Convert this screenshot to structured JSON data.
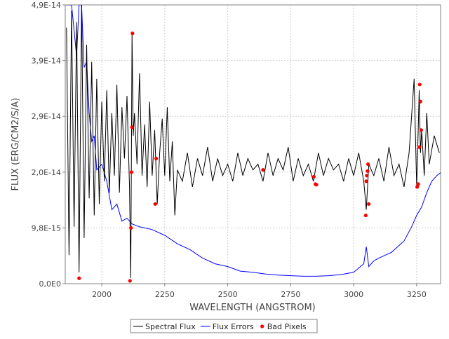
{
  "chart_data": {
    "type": "line",
    "xlabel": "WAVELENGTH (ANGSTROM)",
    "ylabel": "FLUX (ERG/CM2/S/A)",
    "xlim": [
      1855,
      3345
    ],
    "ylim": [
      0,
      4.9e-14
    ],
    "x_ticks": [
      2000,
      2250,
      2500,
      2750,
      3000,
      3250
    ],
    "y_ticks": [
      {
        "value": 0,
        "label": "0,0E0"
      },
      {
        "value": 9.8e-15,
        "label": "9,8E-15"
      },
      {
        "value": 1.96e-14,
        "label": "2,0E-14"
      },
      {
        "value": 2.94e-14,
        "label": "2,9E-14"
      },
      {
        "value": 3.92e-14,
        "label": "3,9E-14"
      },
      {
        "value": 4.9e-14,
        "label": "4,9E-14"
      }
    ],
    "grid": true,
    "legend_position": "bottom",
    "series": [
      {
        "name": "Spectral Flux",
        "color": "#000000",
        "x": [
          1860,
          1870,
          1880,
          1890,
          1900,
          1910,
          1920,
          1930,
          1940,
          1950,
          1960,
          1970,
          1980,
          1990,
          2000,
          2010,
          2020,
          2030,
          2040,
          2050,
          2060,
          2070,
          2080,
          2090,
          2100,
          2110,
          2115,
          2120,
          2125,
          2130,
          2140,
          2150,
          2160,
          2170,
          2180,
          2190,
          2200,
          2210,
          2220,
          2230,
          2240,
          2250,
          2260,
          2270,
          2280,
          2290,
          2300,
          2320,
          2340,
          2360,
          2380,
          2400,
          2420,
          2440,
          2460,
          2480,
          2500,
          2520,
          2540,
          2560,
          2580,
          2600,
          2620,
          2640,
          2660,
          2680,
          2700,
          2720,
          2740,
          2760,
          2780,
          2800,
          2820,
          2840,
          2860,
          2880,
          2900,
          2920,
          2940,
          2960,
          2980,
          3000,
          3020,
          3040,
          3050,
          3060,
          3080,
          3100,
          3120,
          3140,
          3160,
          3180,
          3200,
          3220,
          3240,
          3250,
          3255,
          3260,
          3265,
          3270,
          3280,
          3290,
          3300,
          3320,
          3340
        ],
        "y": [
          4.5e-14,
          5e-15,
          4.8e-14,
          1e-14,
          4.6e-14,
          2e-15,
          4.9e-14,
          8e-15,
          4.2e-14,
          1.5e-14,
          3.9e-14,
          1.2e-14,
          3.6e-14,
          1.4e-14,
          3.2e-14,
          1.8e-14,
          3.4e-14,
          1.6e-14,
          3e-14,
          1.9e-14,
          3.5e-14,
          1.6e-14,
          3.1e-14,
          2.2e-14,
          3.3e-14,
          1.7e-14,
          1e-15,
          4.4e-14,
          2.6e-14,
          3e-14,
          2.1e-14,
          3.7e-14,
          1.9e-14,
          2.8e-14,
          1.7e-14,
          3.2e-14,
          1.9e-14,
          2.7e-14,
          1.4e-14,
          2.3e-14,
          2.9e-14,
          1.9e-14,
          3.1e-14,
          1.8e-14,
          2.5e-14,
          1.2e-14,
          2e-14,
          1.8e-14,
          2.3e-14,
          1.7e-14,
          2.2e-14,
          1.9e-14,
          2.4e-14,
          1.8e-14,
          2.2e-14,
          1.9e-14,
          2.1e-14,
          1.8e-14,
          2.3e-14,
          1.9e-14,
          2.2e-14,
          2e-14,
          2.1e-14,
          1.8e-14,
          2.3e-14,
          1.9e-14,
          2.2e-14,
          2e-14,
          2.4e-14,
          1.8e-14,
          2.2e-14,
          1.9e-14,
          2.1e-14,
          1.8e-14,
          2.3e-14,
          1.9e-14,
          2.2e-14,
          2e-14,
          2.1e-14,
          1.8e-14,
          2.2e-14,
          1.9e-14,
          2.3e-14,
          1.8e-14,
          1.3e-14,
          2.1e-14,
          1.9e-14,
          2.2e-14,
          1.8e-14,
          2.4e-14,
          1.9e-14,
          2.1e-14,
          1.7e-14,
          2.3e-14,
          3.6e-14,
          1.7e-14,
          2.5e-14,
          3.4e-14,
          2.3e-14,
          2.7e-14,
          1.9e-14,
          3e-14,
          2.1e-14,
          2.6e-14,
          2.3e-14
        ]
      },
      {
        "name": "Flux Errors",
        "color": "#0000ff",
        "x": [
          1860,
          1880,
          1900,
          1910,
          1920,
          1930,
          1940,
          1950,
          1960,
          1970,
          1980,
          2000,
          2020,
          2040,
          2060,
          2080,
          2100,
          2120,
          2150,
          2200,
          2250,
          2300,
          2350,
          2400,
          2450,
          2500,
          2550,
          2600,
          2650,
          2700,
          2750,
          2800,
          2850,
          2900,
          2950,
          3000,
          3040,
          3050,
          3060,
          3080,
          3100,
          3150,
          3200,
          3230,
          3250,
          3270,
          3290,
          3310,
          3330,
          3345
        ],
        "y": [
          4.9e-14,
          4.9e-14,
          4e-14,
          4.9e-14,
          4.9e-14,
          3.8e-14,
          3.9e-14,
          3e-14,
          2.5e-14,
          2.6e-14,
          2e-14,
          2.1e-14,
          1.8e-14,
          1.3e-14,
          1.4e-14,
          1.1e-14,
          1.15e-14,
          1.05e-14,
          1e-14,
          9.5e-15,
          8.5e-15,
          7e-15,
          6e-15,
          4.5e-15,
          3.5e-15,
          3e-15,
          2.2e-15,
          2e-15,
          1.7e-15,
          1.5e-15,
          1.4e-15,
          1.3e-15,
          1.3e-15,
          1.4e-15,
          1.6e-15,
          2e-15,
          3.5e-15,
          6.5e-15,
          3e-15,
          4e-15,
          4.5e-15,
          5.5e-15,
          7.5e-15,
          1e-14,
          1.2e-14,
          1.35e-14,
          1.6e-14,
          1.8e-14,
          1.9e-14,
          1.95e-14
        ]
      },
      {
        "name": "Bad Pixels",
        "color": "#ff0000",
        "type": "scatter",
        "x": [
          1910,
          2112,
          2116,
          2118,
          2120,
          2122,
          2212,
          2216,
          2640,
          2842,
          2848,
          2852,
          3048,
          3050,
          3052,
          3055,
          3057,
          3060,
          3252,
          3256,
          3260,
          3262,
          3265,
          3268
        ],
        "y": [
          9.5e-16,
          5e-16,
          9.8e-15,
          1.96e-14,
          2.75e-14,
          4.4e-14,
          1.4e-14,
          2.2e-14,
          2e-14,
          1.88e-14,
          1.75e-14,
          1.74e-14,
          1.2e-14,
          1.8e-14,
          1.9e-14,
          1.98e-14,
          2.1e-14,
          1.4e-14,
          1.7e-14,
          1.75e-14,
          2.4e-14,
          3.5e-14,
          3.2e-14,
          2.7e-14
        ]
      }
    ]
  }
}
